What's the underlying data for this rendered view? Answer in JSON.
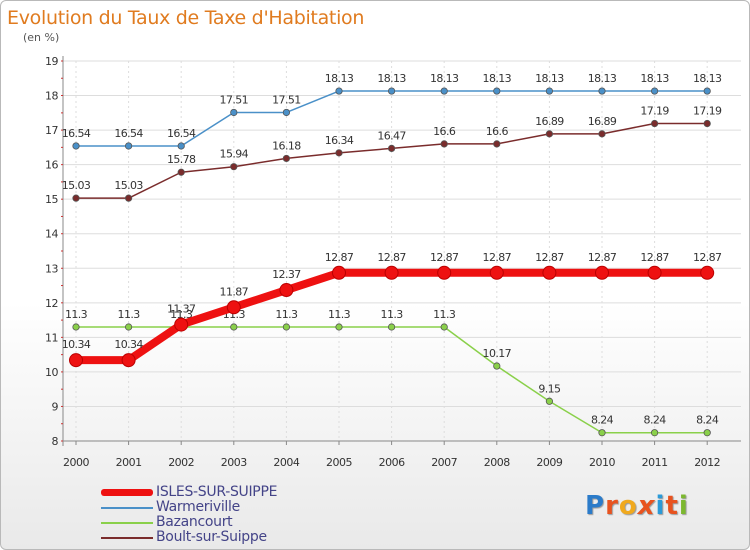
{
  "title": "Evolution du Taux de Taxe d'Habitation",
  "unit_label": "(en %)",
  "logo": {
    "letters": [
      "P",
      "r",
      "o",
      "x",
      "i",
      "t",
      "i"
    ],
    "colors": [
      "#2b7bc9",
      "#e8531f",
      "#f0a91e",
      "#ffffff",
      "#2b9ad8",
      "#e8531f",
      "#7cb82f"
    ]
  },
  "chart_data": {
    "type": "line",
    "x": [
      "2000",
      "2001",
      "2002",
      "2003",
      "2004",
      "2005",
      "2006",
      "2007",
      "2008",
      "2009",
      "2010",
      "2011",
      "2012"
    ],
    "ylim": [
      8,
      19
    ],
    "yticks": [
      "8",
      "9",
      "10",
      "11",
      "12",
      "13",
      "14",
      "15",
      "16",
      "17",
      "18",
      "19"
    ],
    "grid": true,
    "legend_placement": "bottom-left",
    "series": [
      {
        "name": "Warmeriville",
        "color": "#4a90c8",
        "values": [
          16.54,
          16.54,
          16.54,
          17.51,
          17.51,
          18.13,
          18.13,
          18.13,
          18.13,
          18.13,
          18.13,
          18.13,
          18.13
        ],
        "labels": [
          "16.54",
          "16.54",
          "16.54",
          "17.51",
          "17.51",
          "18.13",
          "18.13",
          "18.13",
          "18.13",
          "18.13",
          "18.13",
          "18.13",
          "18.13"
        ]
      },
      {
        "name": "Boult-sur-Suippe",
        "color": "#7a2c2c",
        "values": [
          15.03,
          15.03,
          15.78,
          15.94,
          16.18,
          16.34,
          16.47,
          16.6,
          16.6,
          16.89,
          16.89,
          17.19,
          17.19
        ],
        "labels": [
          "15.03",
          "15.03",
          "15.78",
          "15.94",
          "16.18",
          "16.34",
          "16.47",
          "16.6",
          "16.6",
          "16.89",
          "16.89",
          "17.19",
          "17.19"
        ]
      },
      {
        "name": "Bazancourt",
        "color": "#8ad04a",
        "values": [
          11.3,
          11.3,
          11.3,
          11.3,
          11.3,
          11.3,
          11.3,
          11.3,
          10.17,
          9.15,
          8.24,
          8.24,
          8.24
        ],
        "labels": [
          "11.3",
          "11.3",
          "11.3",
          "11.3",
          "11.3",
          "11.3",
          "11.3",
          "11.3",
          "10.17",
          "9.15",
          "8.24",
          "8.24",
          "8.24"
        ]
      },
      {
        "name": "ISLES-SUR-SUIPPE",
        "color": "#ee1111",
        "values": [
          10.34,
          10.34,
          11.37,
          11.87,
          12.37,
          12.87,
          12.87,
          12.87,
          12.87,
          12.87,
          12.87,
          12.87,
          12.87
        ],
        "labels": [
          "10.34",
          "10.34",
          "11.37",
          "11.87",
          "12.37",
          "12.87",
          "12.87",
          "12.87",
          "12.87",
          "12.87",
          "12.87",
          "12.87",
          "12.87"
        ]
      }
    ]
  },
  "legend": [
    {
      "label": "ISLES-SUR-SUIPPE",
      "color": "#ee1111",
      "thick": true
    },
    {
      "label": "Warmeriville",
      "color": "#4a90c8",
      "thick": false
    },
    {
      "label": "Bazancourt",
      "color": "#8ad04a",
      "thick": false
    },
    {
      "label": "Boult-sur-Suippe",
      "color": "#7a2c2c",
      "thick": false
    }
  ]
}
